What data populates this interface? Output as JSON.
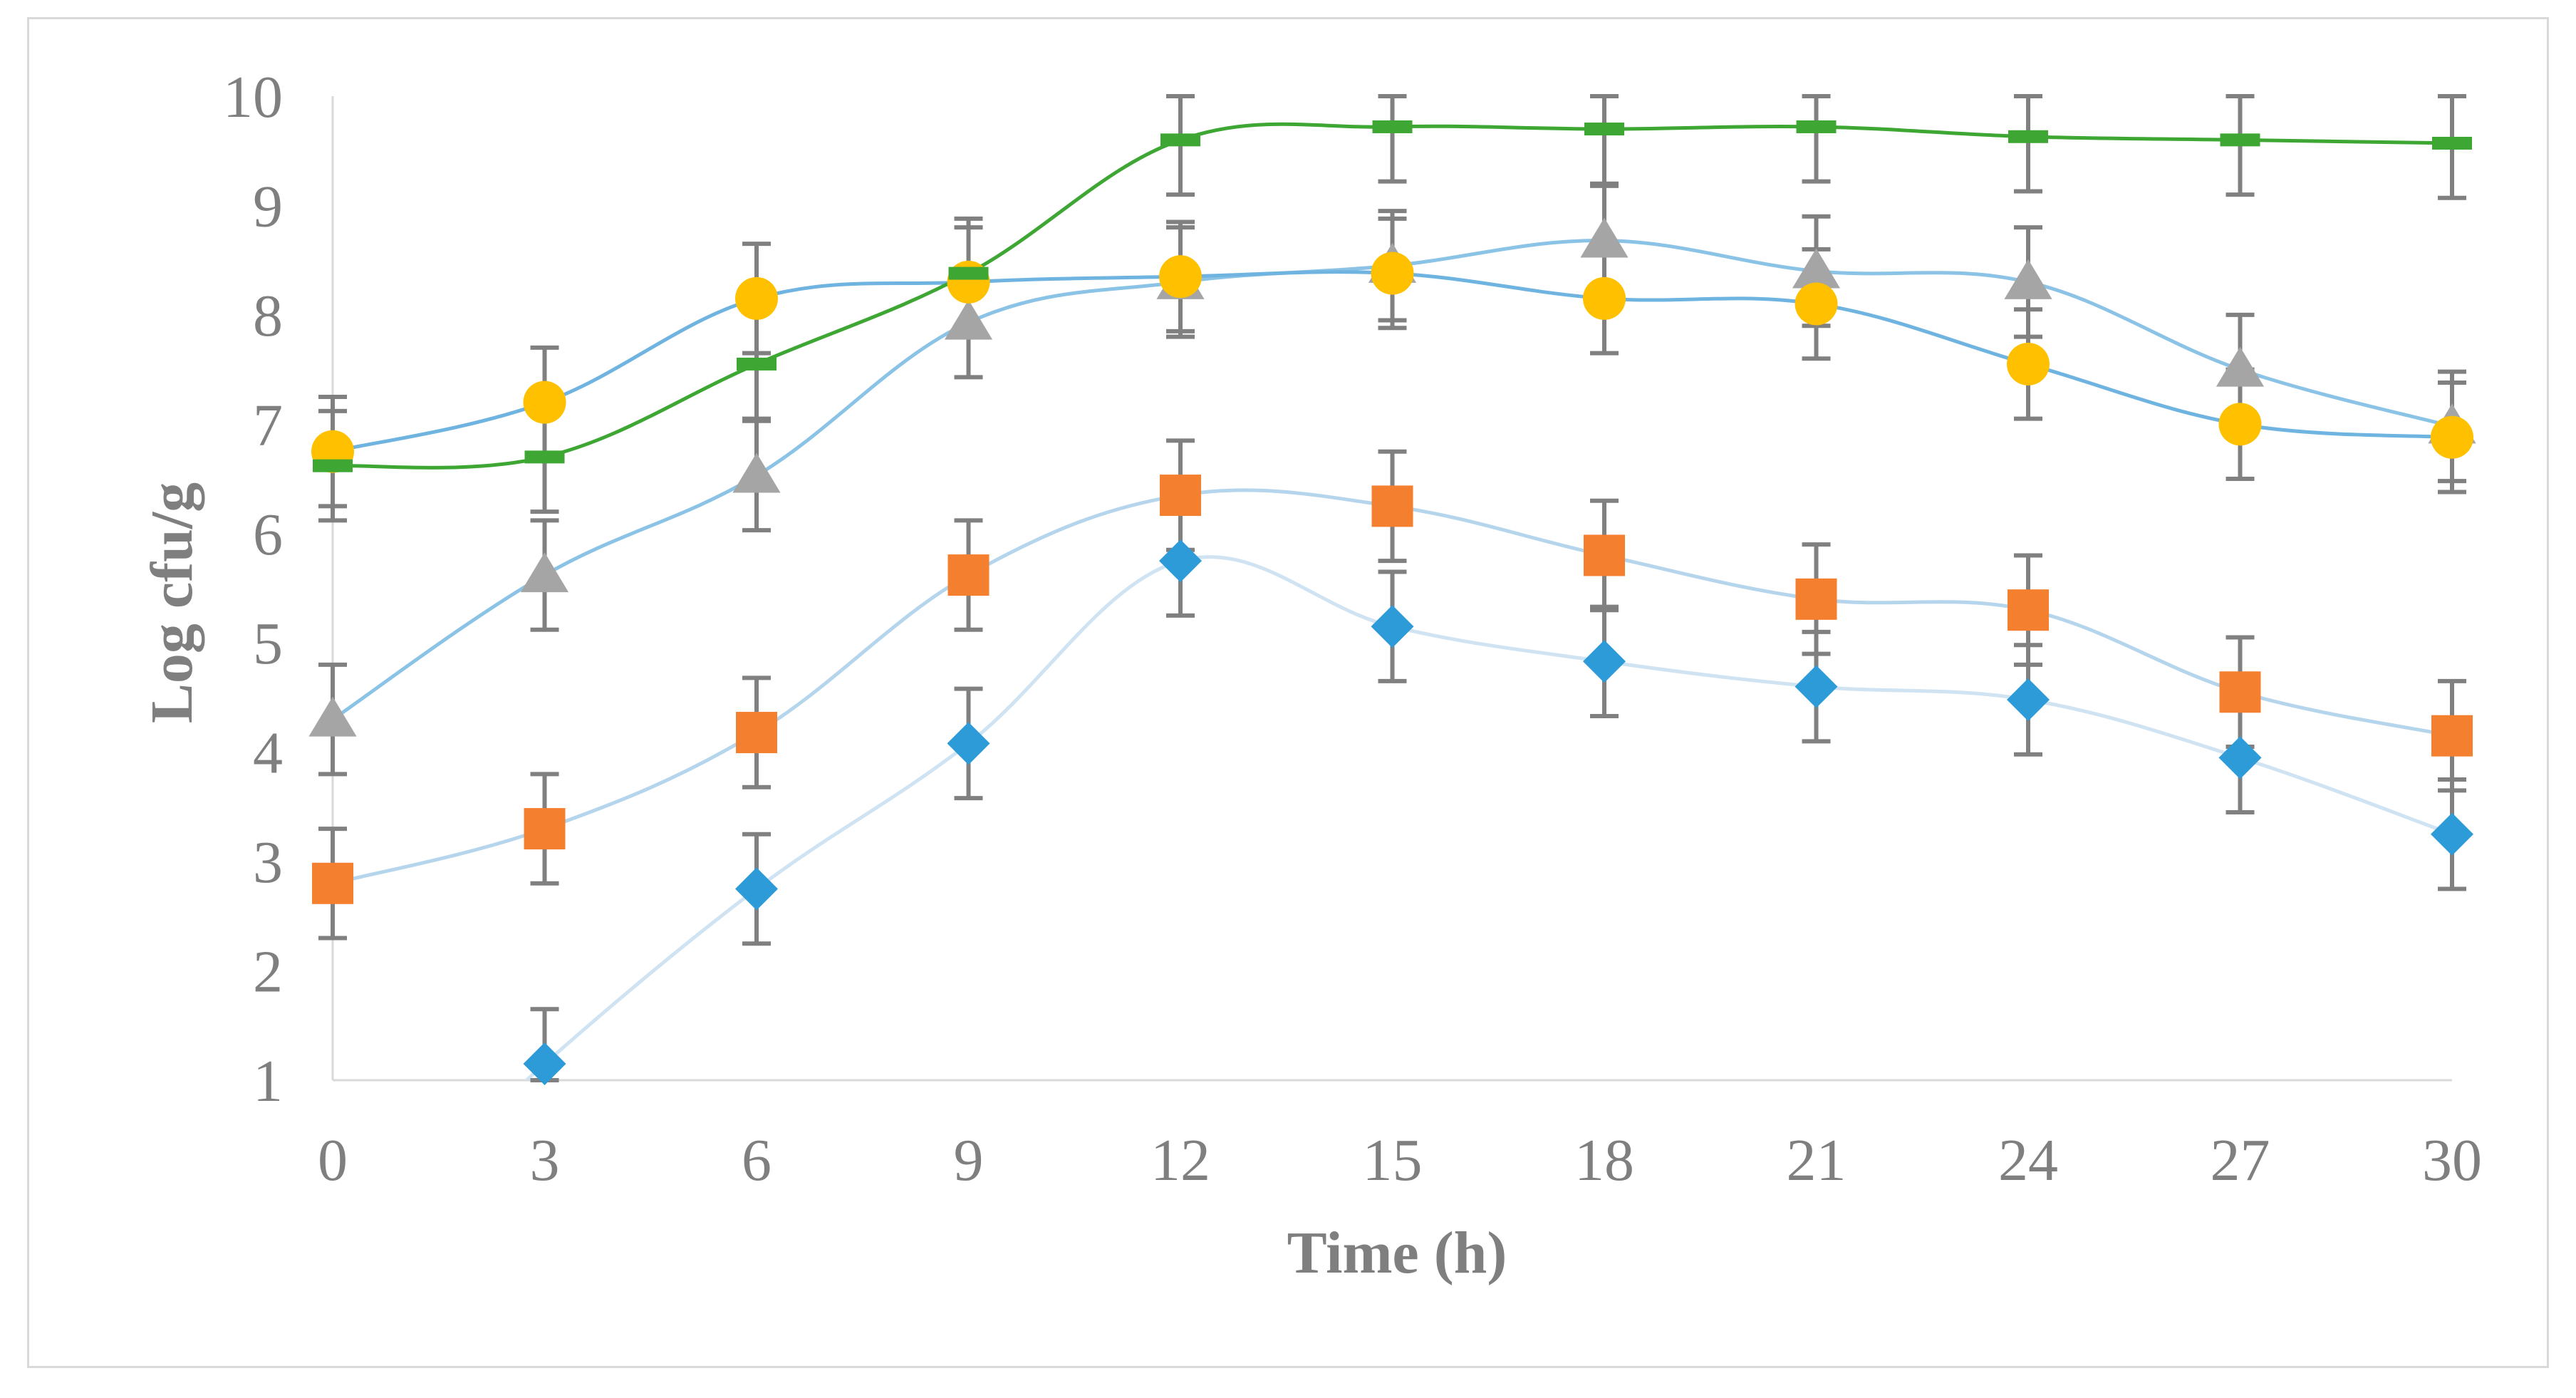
{
  "chart_data": {
    "type": "line",
    "title": "",
    "xlabel": "Time (h)",
    "ylabel": "Log cfu/g",
    "x": [
      0,
      3,
      6,
      9,
      12,
      15,
      18,
      21,
      24,
      27,
      30
    ],
    "x_ticks": [
      "0",
      "3",
      "6",
      "9",
      "12",
      "15",
      "18",
      "21",
      "24",
      "27",
      "30"
    ],
    "y_ticks": [
      "1",
      "2",
      "3",
      "4",
      "5",
      "6",
      "7",
      "8",
      "9",
      "10"
    ],
    "xlim": [
      0,
      30
    ],
    "ylim": [
      1,
      10
    ],
    "grid": false,
    "legend": "none",
    "error_bar": 0.5,
    "series": [
      {
        "name": "diamond-series",
        "marker": "diamond",
        "color": "#2e9bd9",
        "line_color": "#cfe3f2",
        "values": [
          null,
          1.15,
          2.75,
          4.08,
          5.75,
          5.15,
          4.83,
          4.6,
          4.48,
          3.95,
          3.25
        ]
      },
      {
        "name": "square-series",
        "marker": "square",
        "color": "#f47f2f",
        "line_color": "#b5d5ec",
        "values": [
          2.8,
          3.3,
          4.18,
          5.62,
          6.35,
          6.25,
          5.8,
          5.4,
          5.3,
          4.55,
          4.15
        ]
      },
      {
        "name": "triangle-series",
        "marker": "triangle",
        "color": "#a5a5a5",
        "line_color": "#8ac3e6",
        "values": [
          4.3,
          5.62,
          6.53,
          7.93,
          8.3,
          8.45,
          8.68,
          8.4,
          8.3,
          7.5,
          6.98
        ]
      },
      {
        "name": "circle-series",
        "marker": "circle",
        "color": "#ffc000",
        "line_color": "#6fb3e0",
        "values": [
          6.75,
          7.2,
          8.15,
          8.3,
          8.35,
          8.38,
          8.15,
          8.1,
          7.55,
          7.0,
          6.88
        ]
      },
      {
        "name": "dash-series",
        "marker": "dash",
        "color": "#3ea734",
        "line_color": "#3ea734",
        "values": [
          6.62,
          6.7,
          7.55,
          8.38,
          9.6,
          9.72,
          9.7,
          9.72,
          9.63,
          9.6,
          9.57
        ]
      }
    ]
  }
}
